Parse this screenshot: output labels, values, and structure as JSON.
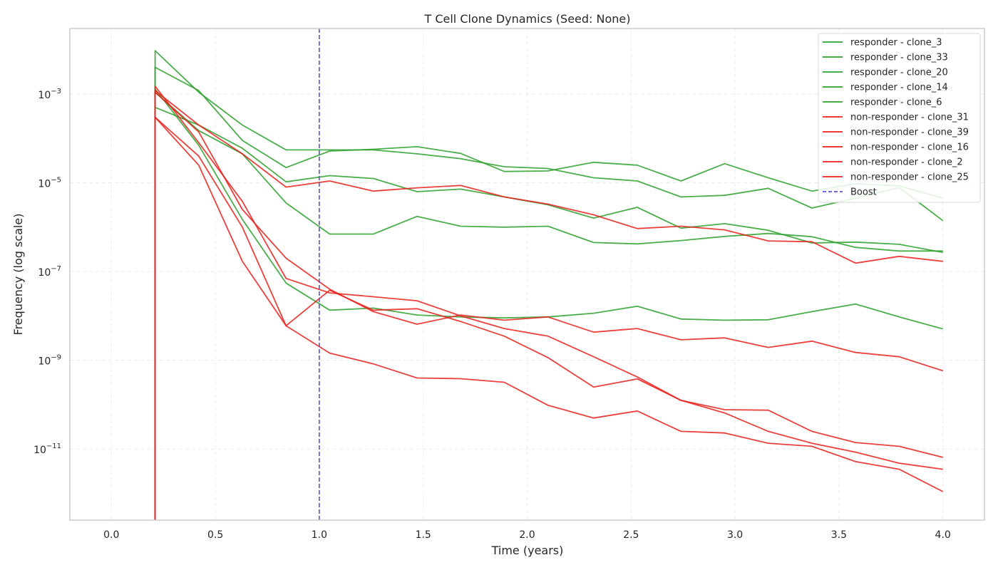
{
  "chart_data": {
    "type": "line",
    "title": "T Cell Clone Dynamics (Seed: None)",
    "xlabel": "Time (years)",
    "ylabel": "Frequency (log scale)",
    "xlim": [
      -0.2,
      4.2
    ],
    "ylim": [
      2.5e-13,
      0.03
    ],
    "yscale": "log",
    "grid": true,
    "legend_position": "top-right",
    "x_ticks": [
      0.0,
      0.5,
      1.0,
      1.5,
      2.0,
      2.5,
      3.0,
      3.5,
      4.0
    ],
    "x_tick_labels": [
      "0.0",
      "0.5",
      "1.0",
      "1.5",
      "2.0",
      "2.5",
      "3.0",
      "3.5",
      "4.0"
    ],
    "y_ticks": [
      {
        "value": 0.001,
        "base": "10",
        "exp": "−3"
      },
      {
        "value": 1e-05,
        "base": "10",
        "exp": "−5"
      },
      {
        "value": 1e-07,
        "base": "10",
        "exp": "−7"
      },
      {
        "value": 1e-09,
        "base": "10",
        "exp": "−9"
      },
      {
        "value": 1e-11,
        "base": "10",
        "exp": "−11"
      }
    ],
    "colors": {
      "responder": "#2ca02c",
      "non_responder": "#e8201b",
      "boost": "#5555cc"
    },
    "boost": {
      "x": 1.0,
      "label": "Boost"
    },
    "x": [
      0.21,
      0.42,
      0.63,
      0.84,
      1.05,
      1.26,
      1.47,
      1.68,
      1.89,
      2.1,
      2.32,
      2.53,
      2.74,
      2.95,
      3.16,
      3.37,
      3.58,
      3.79,
      4.0
    ],
    "series": [
      {
        "name": "responder - clone_3",
        "group": "responder",
        "values": [
          0.0095,
          0.0011,
          0.0002,
          5.5e-05,
          5.5e-05,
          5.5e-05,
          4.5e-05,
          3.5e-05,
          2.3e-05,
          2.1e-05,
          1.3e-05,
          1.1e-05,
          4.8e-06,
          5.2e-06,
          7.5e-06,
          2.7e-06,
          4.5e-06,
          7.8e-06,
          1.4e-06
        ]
      },
      {
        "name": "responder - clone_33",
        "group": "responder",
        "values": [
          0.004,
          0.0012,
          9e-05,
          2.2e-05,
          5.2e-05,
          5.7e-05,
          6.5e-05,
          4.6e-05,
          1.8e-05,
          1.85e-05,
          2.9e-05,
          2.5e-05,
          1.1e-05,
          2.7e-05,
          1.3e-05,
          6.5e-06,
          9.5e-06,
          8.5e-06,
          4.5e-06
        ]
      },
      {
        "name": "responder - clone_20",
        "group": "responder",
        "values": [
          0.0005,
          0.0002,
          6e-05,
          1.05e-05,
          1.45e-05,
          1.25e-05,
          6.3e-06,
          7.2e-06,
          4.8e-06,
          3.2e-06,
          1.6e-06,
          2.8e-06,
          9.5e-07,
          1.2e-06,
          8.5e-07,
          4.4e-07,
          4.6e-07,
          4.1e-07,
          2.7e-07
        ]
      },
      {
        "name": "responder - clone_14",
        "group": "responder",
        "values": [
          0.0011,
          0.00015,
          4.5e-05,
          3.5e-06,
          7e-07,
          7e-07,
          1.75e-06,
          1.05e-06,
          1e-06,
          1.05e-06,
          4.5e-07,
          4.2e-07,
          5e-07,
          6.2e-07,
          7.2e-07,
          6.1e-07,
          3.5e-07,
          2.9e-07,
          2.9e-07
        ]
      },
      {
        "name": "responder - clone_6",
        "group": "responder",
        "values": [
          0.0013,
          7e-05,
          1.5e-06,
          5.5e-08,
          1.35e-08,
          1.5e-08,
          1.05e-08,
          9.5e-09,
          9e-09,
          9.5e-09,
          1.15e-08,
          1.65e-08,
          8.5e-09,
          8e-09,
          8.2e-09,
          1.25e-08,
          1.85e-08,
          9.5e-09,
          5.1e-09
        ]
      },
      {
        "name": "non-responder - clone_31",
        "group": "non_responder",
        "values": [
          0.0012,
          0.0002,
          4.5e-05,
          8e-06,
          1.1e-05,
          6.5e-06,
          7.7e-06,
          8.7e-06,
          4.8e-06,
          3.3e-06,
          1.9e-06,
          9.3e-07,
          1.05e-06,
          8.7e-07,
          4.9e-07,
          4.7e-07,
          1.55e-07,
          2.2e-07,
          1.7e-07
        ]
      },
      {
        "name": "non-responder - clone_39",
        "group": "non_responder",
        "values": [
          0.0015,
          8e-05,
          3.8e-06,
          7e-08,
          3.3e-08,
          2.7e-08,
          2.2e-08,
          1e-08,
          5.2e-09,
          3.5e-09,
          1.2e-09,
          4.2e-10,
          1.25e-10,
          7.7e-11,
          7.5e-11,
          2.5e-11,
          1.4e-11,
          1.15e-11,
          6.5e-12
        ]
      },
      {
        "name": "non-responder - clone_16",
        "group": "non_responder",
        "values": [
          0.0003,
          4e-05,
          1e-06,
          6e-09,
          1.45e-09,
          8.3e-10,
          4e-10,
          3.85e-10,
          3.2e-10,
          9.7e-11,
          5e-11,
          7.2e-11,
          2.5e-11,
          2.3e-11,
          1.35e-11,
          1.15e-11,
          5.2e-12,
          3.5e-12,
          1.1e-12
        ]
      },
      {
        "name": "non-responder - clone_2",
        "group": "non_responder",
        "values": [
          0.0011,
          0.00014,
          2.5e-06,
          2e-07,
          4e-08,
          1.25e-08,
          6.5e-09,
          1.05e-08,
          8e-09,
          9.5e-09,
          4.3e-09,
          5.2e-09,
          2.9e-09,
          3.2e-09,
          1.95e-09,
          2.7e-09,
          1.5e-09,
          1.2e-09,
          5.8e-10
        ]
      },
      {
        "name": "non-responder - clone_25",
        "group": "non_responder",
        "values": [
          0.0003,
          2.5e-05,
          1.7e-07,
          6e-09,
          3.8e-08,
          1.35e-08,
          1.45e-08,
          7.5e-09,
          3.5e-09,
          1.15e-09,
          2.5e-10,
          3.8e-10,
          1.25e-10,
          6.5e-11,
          2.5e-11,
          1.35e-11,
          8.5e-12,
          4.8e-12,
          3.5e-12
        ]
      }
    ]
  }
}
